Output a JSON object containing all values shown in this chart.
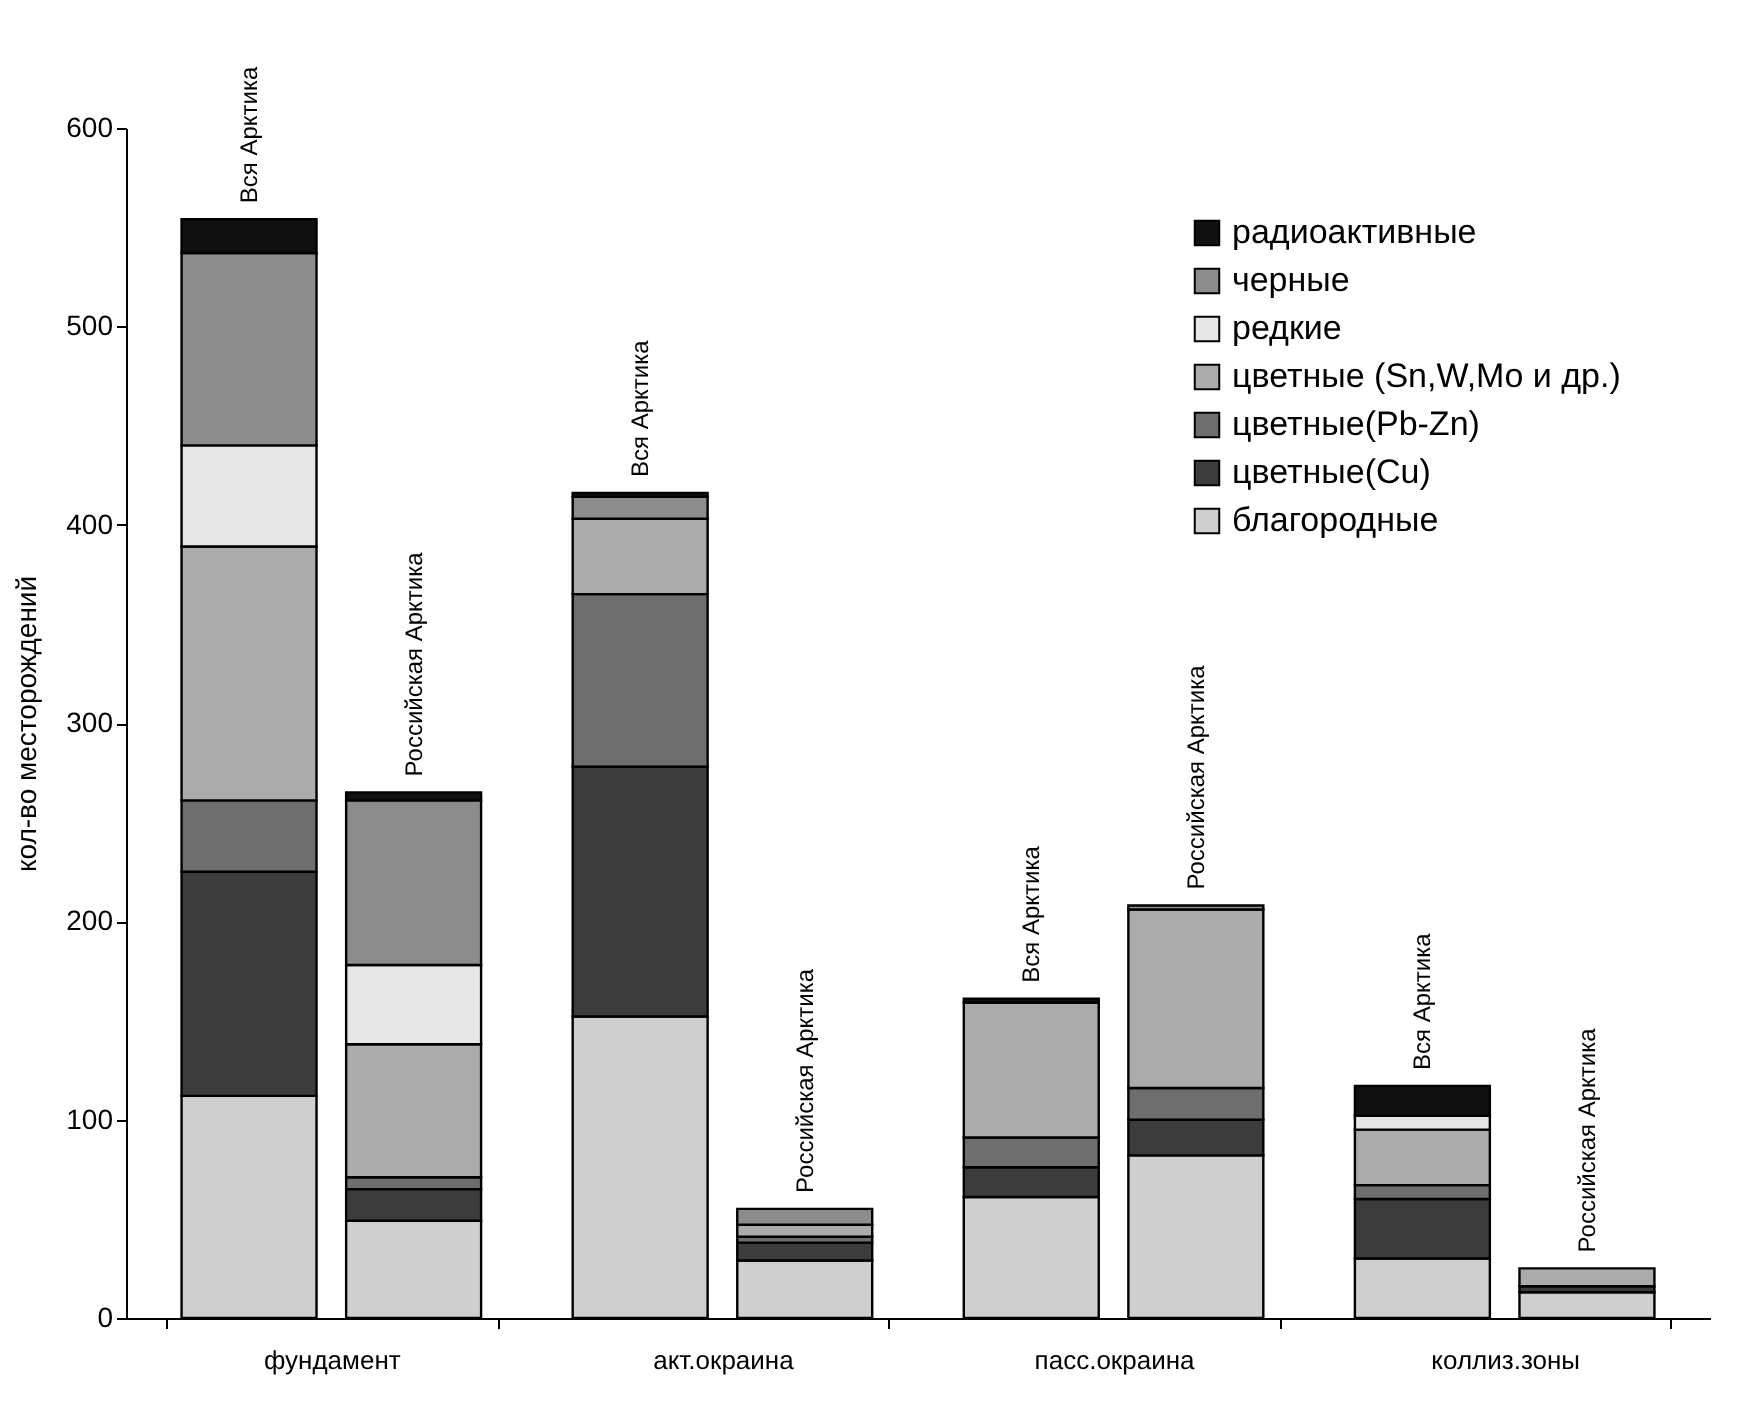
{
  "chart_data": {
    "type": "bar",
    "stacked": true,
    "ylabel": "кол-во месторождений",
    "categories": [
      "Вся Арктика",
      "Российская Арктика",
      "Вся Арктика",
      "Российская Арктика",
      "Вся Арктика",
      "Российская Арктика",
      "Вся Арктика",
      "Российская Арктика"
    ],
    "annotations": [
      "фундамент",
      "акт.окраина",
      "пасс.окраина",
      "коллиз.зоны"
    ],
    "series": [
      {
        "name": "благородные",
        "color": "#cfcfcf",
        "values": [
          112,
          49,
          152,
          29,
          61,
          82,
          30,
          13
        ]
      },
      {
        "name": "цветные(Cu)",
        "color": "#3c3c3c",
        "values": [
          113,
          16,
          126,
          9,
          15,
          18,
          30,
          3
        ]
      },
      {
        "name": "цветные(Pb-Zn)",
        "color": "#6e6e6e",
        "values": [
          36,
          6,
          87,
          3,
          15,
          16,
          7,
          null
        ]
      },
      {
        "name": "цветные (Sn,W,Mo и др.)",
        "color": "#ababab",
        "values": [
          128,
          67,
          38,
          6,
          68,
          90,
          28,
          9
        ]
      },
      {
        "name": "редкие",
        "color": "#e6e6e6",
        "values": [
          51,
          40,
          null,
          null,
          null,
          null,
          7,
          null
        ]
      },
      {
        "name": "черные",
        "color": "#8c8c8c",
        "values": [
          97,
          83,
          11,
          8,
          null,
          2,
          null,
          null
        ]
      },
      {
        "name": "радиоактивные",
        "color": "#111111",
        "values": [
          17,
          4,
          2,
          null,
          2,
          null,
          15,
          null
        ]
      }
    ],
    "ylim": [
      0,
      600
    ],
    "yticks": [
      0,
      100,
      200,
      300,
      400,
      500,
      600
    ],
    "grid": false,
    "legend": "top right"
  }
}
